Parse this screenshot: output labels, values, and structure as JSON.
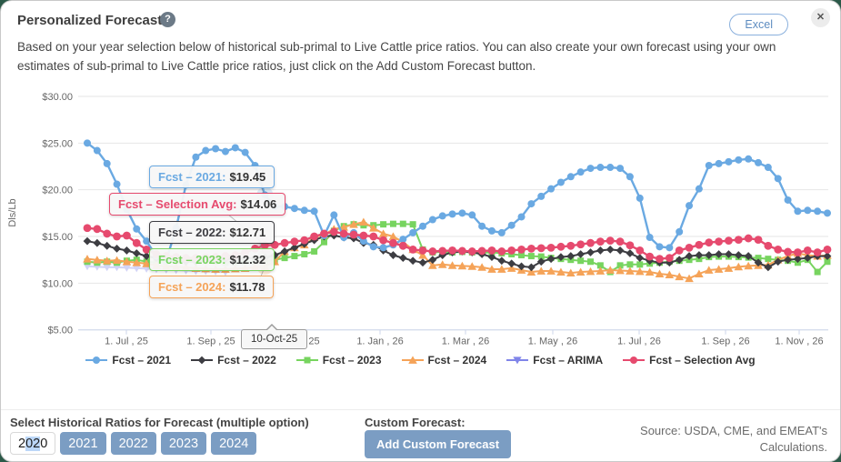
{
  "header": {
    "title": "Personalized Forecast",
    "help_glyph": "?",
    "excel_label": "Excel",
    "close_glyph": "✕"
  },
  "description": "Based on your year selection below of historical sub-primal to Live Cattle price ratios. You can also create your own forecast using your own estimates of sub-primal to Live Cattle price ratios, just click on the Add Custom Forecast button.",
  "colors": {
    "blue": "#6aa9e2",
    "black": "#3d3d42",
    "green": "#77d45f",
    "orange": "#f5a358",
    "periwinkle": "#8085e9",
    "red": "#e64a6e",
    "button_blue": "#7b9dc3",
    "grid": "#e6e6e6",
    "axis_line": "#ccd6eb",
    "axis_text": "#666666"
  },
  "chart_data": {
    "type": "line",
    "title": "",
    "ylabel": "Dls/Lb",
    "ylim": [
      5,
      30
    ],
    "grid": true,
    "legend_position": "bottom",
    "yticks": [
      30,
      25,
      20,
      15,
      10,
      5
    ],
    "ytick_labels": [
      "$30.00",
      "$25.00",
      "$20.00",
      "$15.00",
      "$10.00",
      "$5.00"
    ],
    "x_description": "Weekly points from Jun 2025 to Nov 2026",
    "xtick_labels": [
      "1. Jul , 25",
      "1. Sep , 25",
      "1. Nov , 25",
      "1. Jan , 26",
      "1. Mar , 26",
      "1. May , 26",
      "1. Jul , 26",
      "1. Sep , 26",
      "1. Nov , 26"
    ],
    "series": [
      {
        "name": "Fcst – 2021",
        "color": "#6aa9e2",
        "marker": "circle",
        "opacity": 1,
        "values": [
          25.0,
          24.2,
          22.8,
          20.6,
          17.9,
          15.8,
          14.5,
          12.9,
          12.4,
          15.9,
          20.5,
          23.5,
          24.2,
          24.4,
          24.1,
          24.5,
          24.0,
          22.6,
          19.45,
          18.2,
          18.2,
          18.0,
          17.8,
          17.7,
          15.1,
          17.3,
          14.9,
          15.4,
          14.5,
          13.9,
          13.8,
          14.1,
          14.7,
          15.4,
          16.1,
          16.8,
          17.2,
          17.4,
          17.5,
          17.3,
          16.1,
          15.6,
          15.4,
          16.2,
          17.1,
          18.5,
          19.3,
          20.1,
          20.8,
          21.4,
          21.9,
          22.3,
          22.4,
          22.4,
          22.3,
          21.4,
          19.1,
          14.9,
          13.9,
          13.8,
          15.5,
          18.3,
          20.1,
          22.6,
          22.8,
          23.0,
          23.2,
          23.3,
          22.9,
          22.4,
          21.2,
          18.9,
          17.7,
          17.8,
          17.7,
          17.5
        ]
      },
      {
        "name": "Fcst – 2022",
        "color": "#3d3d42",
        "marker": "diamond",
        "opacity": 1,
        "values": [
          14.5,
          14.3,
          14.0,
          13.7,
          13.5,
          13.2,
          12.9,
          12.7,
          12.5,
          12.4,
          12.3,
          12.3,
          12.4,
          12.5,
          12.6,
          12.6,
          12.65,
          12.7,
          12.71,
          13.0,
          13.4,
          13.8,
          14.2,
          14.6,
          15.0,
          15.1,
          14.9,
          14.8,
          14.3,
          14.1,
          13.5,
          13.0,
          12.7,
          12.4,
          12.2,
          12.5,
          13.0,
          13.3,
          13.4,
          13.3,
          13.1,
          12.8,
          12.4,
          12.1,
          11.8,
          11.7,
          12.3,
          12.6,
          12.8,
          12.9,
          13.1,
          13.3,
          13.5,
          13.6,
          13.5,
          13.2,
          12.7,
          12.4,
          12.2,
          12.2,
          12.5,
          12.9,
          13.0,
          13.0,
          13.1,
          13.1,
          13.0,
          12.9,
          12.2,
          11.7,
          12.3,
          12.5,
          12.6,
          12.7,
          12.9,
          12.9
        ]
      },
      {
        "name": "Fcst – 2023",
        "color": "#77d45f",
        "marker": "square",
        "opacity": 1,
        "values": [
          12.3,
          12.2,
          12.3,
          12.2,
          12.4,
          12.5,
          12.3,
          12.2,
          12.3,
          12.4,
          12.6,
          12.5,
          12.4,
          12.3,
          12.2,
          12.25,
          12.3,
          12.3,
          12.32,
          12.5,
          12.7,
          12.9,
          13.1,
          13.4,
          14.4,
          15.6,
          16.1,
          16.3,
          16.2,
          16.2,
          16.3,
          16.35,
          16.35,
          16.3,
          13.6,
          13.3,
          13.35,
          13.3,
          13.35,
          13.3,
          13.25,
          13.3,
          13.2,
          13.1,
          13.0,
          12.9,
          12.85,
          12.7,
          12.6,
          12.5,
          12.4,
          12.3,
          11.9,
          11.2,
          11.9,
          12.0,
          12.0,
          12.1,
          12.2,
          12.3,
          12.4,
          12.5,
          12.6,
          12.8,
          12.85,
          12.85,
          12.8,
          12.75,
          12.7,
          12.6,
          12.5,
          12.4,
          12.2,
          12.5,
          11.2,
          12.3
        ]
      },
      {
        "name": "Fcst – 2024",
        "color": "#f5a358",
        "marker": "triangle",
        "opacity": 1,
        "values": [
          12.6,
          12.5,
          12.4,
          12.45,
          12.3,
          12.2,
          12.1,
          11.9,
          11.8,
          11.75,
          11.7,
          11.6,
          11.55,
          11.5,
          11.5,
          11.55,
          11.6,
          11.7,
          11.78,
          12.3,
          13.4,
          13.8,
          14.1,
          14.9,
          15.2,
          15.8,
          16.0,
          16.3,
          16.55,
          15.9,
          15.3,
          15.0,
          14.4,
          13.6,
          13.0,
          11.9,
          12.0,
          11.9,
          11.85,
          11.8,
          11.7,
          11.5,
          11.5,
          11.6,
          11.4,
          11.2,
          11.3,
          11.3,
          11.2,
          11.1,
          11.2,
          11.25,
          11.3,
          11.4,
          11.35,
          11.3,
          11.25,
          11.2,
          11.0,
          10.9,
          10.7,
          10.5,
          11.0,
          11.4,
          11.5,
          11.6,
          11.75,
          11.85,
          11.9,
          11.95,
          12.5,
          12.9,
          13.2,
          13.0,
          12.9,
          13.0
        ]
      },
      {
        "name": "Fcst – ARIMA",
        "color": "#8085e9",
        "marker": "triangle-down",
        "opacity": 0.35,
        "values": [
          11.8,
          11.75,
          11.7,
          11.7,
          11.65,
          11.6,
          11.55,
          11.5,
          11.45,
          11.4,
          11.35,
          11.3,
          11.3,
          11.25,
          11.2,
          null,
          null,
          null,
          null,
          null,
          null,
          null,
          null,
          null,
          null,
          null,
          null,
          null,
          null,
          null,
          null,
          null,
          null,
          null,
          null,
          null,
          null,
          null,
          null,
          null,
          null,
          null,
          null,
          null,
          null,
          null,
          null,
          null,
          null,
          null,
          null,
          null,
          null,
          null,
          null,
          null,
          null,
          null,
          null,
          null,
          null,
          null,
          null,
          null,
          null,
          null,
          null,
          null,
          null,
          null,
          null,
          null,
          null,
          null,
          null,
          null
        ]
      },
      {
        "name": "Fcst – Selection Avg",
        "color": "#e64a6e",
        "marker": "circle",
        "opacity": 1,
        "values": [
          15.9,
          15.8,
          15.3,
          15.0,
          15.1,
          14.3,
          13.6,
          13.1,
          12.9,
          12.8,
          12.7,
          12.7,
          12.75,
          12.8,
          12.9,
          13.0,
          13.3,
          13.7,
          14.06,
          14.1,
          14.3,
          14.45,
          14.6,
          15.0,
          15.3,
          15.5,
          15.3,
          15.2,
          15.1,
          15.0,
          14.6,
          14.3,
          14.0,
          13.6,
          13.5,
          13.4,
          13.45,
          13.5,
          13.45,
          13.4,
          13.45,
          13.5,
          13.4,
          13.5,
          13.6,
          13.7,
          13.75,
          13.8,
          13.9,
          14.0,
          14.15,
          14.3,
          14.45,
          14.55,
          14.45,
          14.05,
          13.5,
          12.85,
          12.6,
          12.7,
          13.5,
          13.8,
          14.1,
          14.35,
          14.45,
          14.55,
          14.65,
          14.8,
          14.65,
          14.0,
          13.6,
          13.35,
          13.3,
          13.5,
          13.3,
          13.6
        ]
      }
    ],
    "tooltip": {
      "date": "10-Oct-25",
      "week_index": 18,
      "entries": [
        {
          "series": "Fcst – 2021",
          "label": "Fcst – 2021:",
          "value": "$19.45"
        },
        {
          "series": "Fcst – Selection Avg",
          "label": "Fcst – Selection Avg:",
          "value": "$14.06"
        },
        {
          "series": "Fcst – 2022",
          "label": "Fcst – 2022:",
          "value": "$12.71"
        },
        {
          "series": "Fcst – 2023",
          "label": "Fcst – 2023:",
          "value": "$12.32"
        },
        {
          "series": "Fcst – 2024",
          "label": "Fcst – 2024:",
          "value": "$11.78"
        }
      ]
    }
  },
  "footer": {
    "select_label": "Select Historical Ratios for Forecast (multiple option)",
    "year_buttons": [
      {
        "label": "2020",
        "selected": false,
        "selection_highlight": "02"
      },
      {
        "label": "2021",
        "selected": true
      },
      {
        "label": "2022",
        "selected": true
      },
      {
        "label": "2023",
        "selected": true
      },
      {
        "label": "2024",
        "selected": true
      }
    ],
    "custom_forecast_label": "Custom Forecast:",
    "add_custom_button": "Add Custom Forecast",
    "source": "Source: USDA, CME, and EMEAT's Calculations."
  }
}
